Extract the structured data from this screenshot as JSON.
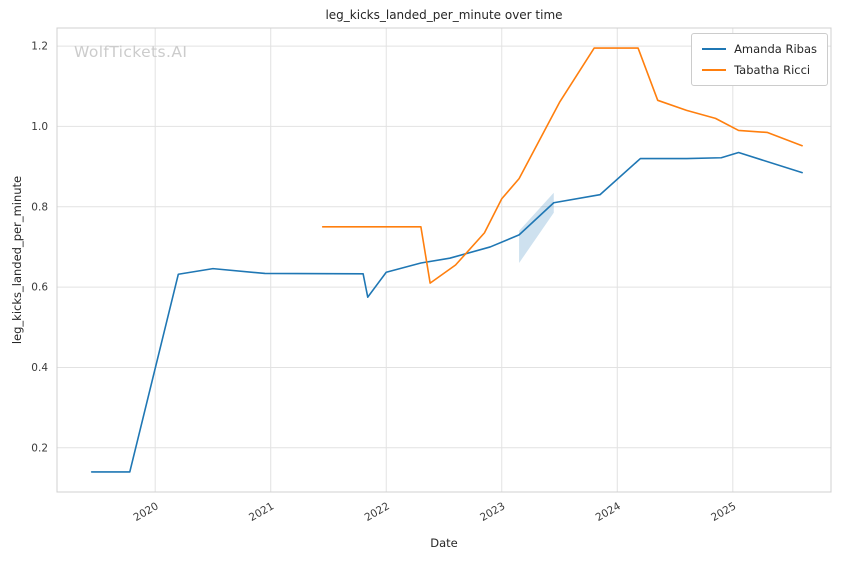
{
  "watermark": "WolfTickets.AI",
  "chart_data": {
    "type": "line",
    "title": "leg_kicks_landed_per_minute over time",
    "xlabel": "Date",
    "ylabel": "leg_kicks_landed_per_minute",
    "xlim": [
      2019.15,
      2025.85
    ],
    "ylim": [
      0.09,
      1.245
    ],
    "grid": true,
    "grid_color": "#e2e2e2",
    "spine_color": "#d0d0d0",
    "legend_position": "upper right",
    "x_ticks": {
      "values": [
        2020,
        2021,
        2022,
        2023,
        2024,
        2025
      ],
      "labels": [
        "2020",
        "2021",
        "2022",
        "2023",
        "2024",
        "2025"
      ]
    },
    "y_ticks": {
      "values": [
        0.2,
        0.4,
        0.6,
        0.8,
        1.0,
        1.2
      ],
      "labels": [
        "0.2",
        "0.4",
        "0.6",
        "0.8",
        "1.0",
        "1.2"
      ]
    },
    "series": [
      {
        "name": "Amanda Ribas",
        "color": "#1f77b4",
        "x": [
          2019.45,
          2019.78,
          2020.2,
          2020.5,
          2020.95,
          2021.8,
          2021.84,
          2022.0,
          2022.3,
          2022.55,
          2022.9,
          2023.15,
          2023.45,
          2023.85,
          2024.2,
          2024.6,
          2024.9,
          2025.05,
          2025.6
        ],
        "y": [
          0.14,
          0.14,
          0.632,
          0.646,
          0.634,
          0.633,
          0.575,
          0.637,
          0.66,
          0.672,
          0.7,
          0.73,
          0.81,
          0.83,
          0.92,
          0.92,
          0.922,
          0.935,
          0.885
        ]
      },
      {
        "name": "Tabatha Ricci",
        "color": "#ff7f0e",
        "x": [
          2021.45,
          2022.3,
          2022.38,
          2022.6,
          2022.85,
          2023.0,
          2023.15,
          2023.5,
          2023.8,
          2024.18,
          2024.35,
          2024.6,
          2024.85,
          2025.05,
          2025.3,
          2025.6
        ],
        "y": [
          0.75,
          0.75,
          0.61,
          0.655,
          0.735,
          0.82,
          0.87,
          1.06,
          1.195,
          1.195,
          1.065,
          1.04,
          1.02,
          0.99,
          0.985,
          0.952
        ]
      }
    ],
    "band": {
      "series": "Amanda Ribas",
      "color": "#1f77b4",
      "opacity": 0.22,
      "x": [
        2023.15,
        2023.45
      ],
      "lower": [
        0.66,
        0.785
      ],
      "upper": [
        0.74,
        0.835
      ]
    }
  }
}
